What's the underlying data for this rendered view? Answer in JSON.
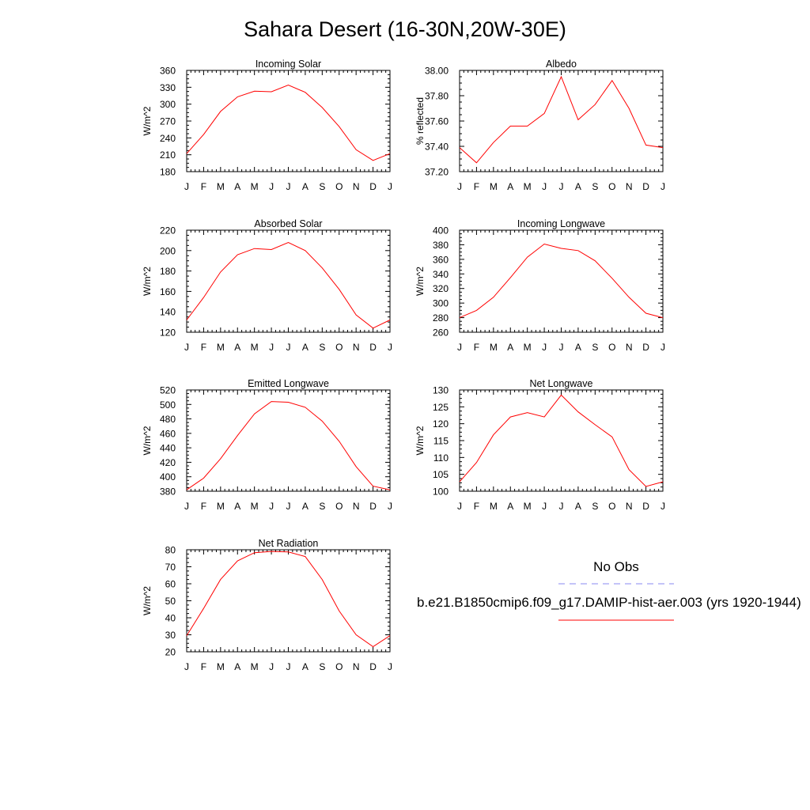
{
  "title": "Sahara Desert (16-30N,20W-30E)",
  "months": [
    "J",
    "F",
    "M",
    "A",
    "M",
    "J",
    "J",
    "A",
    "S",
    "O",
    "N",
    "D",
    "J"
  ],
  "chart_data": [
    {
      "type": "line",
      "title": "Incoming Solar",
      "ylabel": "W/m^2",
      "x": [
        "J",
        "F",
        "M",
        "A",
        "M",
        "J",
        "J",
        "A",
        "S",
        "O",
        "N",
        "D",
        "J"
      ],
      "ylim": [
        180,
        360
      ],
      "yticks": [
        "180",
        "210",
        "240",
        "270",
        "300",
        "330",
        "360"
      ],
      "series": [
        {
          "color": "#ff0000",
          "values": [
            212,
            246,
            287,
            313,
            323,
            322,
            334,
            321,
            294,
            260,
            219,
            200,
            212
          ]
        }
      ]
    },
    {
      "type": "line",
      "title": "Albedo",
      "ylabel": "% reflected",
      "x": [
        "J",
        "F",
        "M",
        "A",
        "M",
        "J",
        "J",
        "A",
        "S",
        "O",
        "N",
        "D",
        "J"
      ],
      "ylim": [
        37.2,
        38.0
      ],
      "yticks": [
        "37.20",
        "37.40",
        "37.60",
        "37.80",
        "38.00"
      ],
      "series": [
        {
          "color": "#ff0000",
          "values": [
            37.39,
            37.27,
            37.43,
            37.56,
            37.56,
            37.66,
            37.95,
            37.61,
            37.73,
            37.92,
            37.7,
            37.41,
            37.39
          ]
        }
      ]
    },
    {
      "type": "line",
      "title": "Absorbed Solar",
      "ylabel": "W/m^2",
      "x": [
        "J",
        "F",
        "M",
        "A",
        "M",
        "J",
        "J",
        "A",
        "S",
        "O",
        "N",
        "D",
        "J"
      ],
      "ylim": [
        120,
        220
      ],
      "yticks": [
        "120",
        "140",
        "160",
        "180",
        "200",
        "220"
      ],
      "series": [
        {
          "color": "#ff0000",
          "values": [
            132,
            154,
            179,
            196,
            202,
            201,
            208,
            200,
            183,
            162,
            137,
            124,
            132
          ]
        }
      ]
    },
    {
      "type": "line",
      "title": "Incoming Longwave",
      "ylabel": "W/m^2",
      "x": [
        "J",
        "F",
        "M",
        "A",
        "M",
        "J",
        "J",
        "A",
        "S",
        "O",
        "N",
        "D",
        "J"
      ],
      "ylim": [
        260,
        400
      ],
      "yticks": [
        "260",
        "280",
        "300",
        "320",
        "340",
        "360",
        "380",
        "400"
      ],
      "series": [
        {
          "color": "#ff0000",
          "values": [
            280,
            290,
            308,
            335,
            363,
            381,
            375,
            372,
            358,
            334,
            308,
            286,
            280
          ]
        }
      ]
    },
    {
      "type": "line",
      "title": "Emitted Longwave",
      "ylabel": "W/m^2",
      "x": [
        "J",
        "F",
        "M",
        "A",
        "M",
        "J",
        "J",
        "A",
        "S",
        "O",
        "N",
        "D",
        "J"
      ],
      "ylim": [
        380,
        520
      ],
      "yticks": [
        "380",
        "400",
        "420",
        "440",
        "460",
        "480",
        "500",
        "520"
      ],
      "series": [
        {
          "color": "#ff0000",
          "values": [
            382,
            398,
            425,
            457,
            487,
            504,
            503,
            496,
            477,
            449,
            414,
            387,
            382
          ]
        }
      ]
    },
    {
      "type": "line",
      "title": "Net Longwave",
      "ylabel": "W/m^2",
      "x": [
        "J",
        "F",
        "M",
        "A",
        "M",
        "J",
        "J",
        "A",
        "S",
        "O",
        "N",
        "D",
        "J"
      ],
      "ylim": [
        100,
        130
      ],
      "yticks": [
        "100",
        "105",
        "110",
        "115",
        "120",
        "125",
        "130"
      ],
      "series": [
        {
          "color": "#ff0000",
          "values": [
            102.8,
            108.5,
            116.7,
            122.0,
            123.3,
            122.0,
            128.5,
            123.5,
            119.7,
            116.1,
            106.4,
            101.4,
            102.8
          ]
        }
      ]
    },
    {
      "type": "line",
      "title": "Net Radiation",
      "ylabel": "W/m^2",
      "x": [
        "J",
        "F",
        "M",
        "A",
        "M",
        "J",
        "J",
        "A",
        "S",
        "O",
        "N",
        "D",
        "J"
      ],
      "ylim": [
        20,
        80
      ],
      "yticks": [
        "20",
        "30",
        "40",
        "50",
        "60",
        "70",
        "80"
      ],
      "series": [
        {
          "color": "#ff0000",
          "values": [
            29.5,
            45.5,
            62.5,
            73.5,
            78.3,
            79.0,
            78.7,
            76.0,
            62.5,
            44.0,
            30.0,
            23.0,
            29.5
          ]
        }
      ]
    }
  ],
  "legend": {
    "entries": [
      {
        "label": "No Obs",
        "color": "#8a8af0",
        "dash": true
      },
      {
        "label": "b.e21.B1850cmip6.f09_g17.DAMIP-hist-aer.003 (yrs 1920-1944)",
        "color": "#ff0000",
        "dash": false
      }
    ]
  }
}
